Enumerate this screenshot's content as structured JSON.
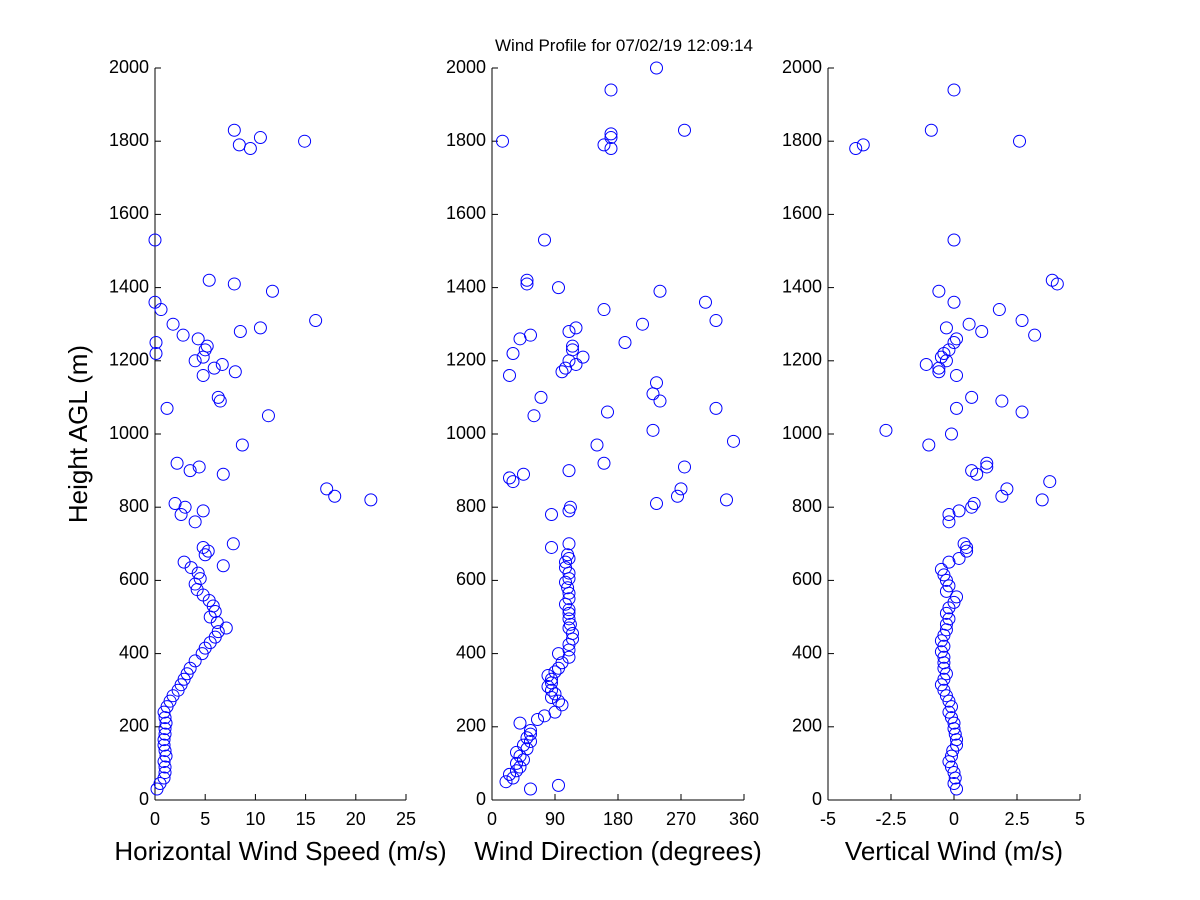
{
  "title": "Wind Profile for  07/02/19 12:09:14",
  "chart_data": [
    {
      "type": "scatter",
      "x_label": "Horizontal Wind Speed (m/s)",
      "y_label": "Height AGL (m)",
      "color": "#0000ff",
      "xlim": [
        0,
        25
      ],
      "ylim": [
        0,
        2000
      ],
      "xticks": [
        0,
        5,
        10,
        15,
        20,
        25
      ],
      "yticks": [
        0,
        200,
        400,
        600,
        800,
        1000,
        1200,
        1400,
        1600,
        1800,
        2000
      ],
      "x": [
        0.2,
        0.5,
        0.9,
        1.0,
        1.0,
        0.9,
        1.1,
        1.0,
        0.9,
        0.9,
        1.0,
        1.0,
        1.1,
        1.0,
        0.9,
        1.2,
        1.5,
        1.8,
        2.3,
        2.6,
        2.9,
        3.2,
        3.5,
        4.0,
        4.7,
        5.0,
        5.5,
        6.0,
        6.3,
        7.1,
        6.2,
        5.5,
        6.0,
        5.8,
        5.4,
        4.8,
        4.2,
        4.0,
        4.5,
        4.3,
        3.6,
        2.9,
        6.8,
        5.0,
        5.3,
        4.8,
        7.8,
        4.0,
        2.6,
        3.0,
        2.0,
        4.8,
        2.2,
        3.5,
        4.4,
        6.8,
        8.7,
        11.3,
        1.2,
        6.3,
        6.5,
        4.8,
        5.9,
        6.7,
        8.0,
        4.0,
        4.8,
        5.0,
        5.2,
        4.3,
        2.8,
        1.8,
        8.5,
        10.5,
        0.1,
        0.1,
        0.0,
        0.6,
        11.7,
        16.0,
        5.4,
        7.9,
        0.0,
        7.9,
        8.4,
        9.5,
        10.5,
        14.9,
        17.1,
        17.9,
        21.5
      ],
      "y": [
        30,
        45,
        60,
        75,
        90,
        105,
        120,
        135,
        150,
        165,
        180,
        195,
        210,
        225,
        240,
        255,
        270,
        285,
        300,
        315,
        330,
        345,
        360,
        380,
        400,
        415,
        430,
        445,
        460,
        470,
        485,
        500,
        515,
        530,
        545,
        560,
        575,
        590,
        605,
        620,
        635,
        650,
        640,
        670,
        680,
        690,
        700,
        760,
        780,
        800,
        810,
        790,
        920,
        900,
        910,
        890,
        970,
        1050,
        1070,
        1100,
        1090,
        1160,
        1180,
        1190,
        1170,
        1200,
        1210,
        1230,
        1240,
        1260,
        1270,
        1300,
        1280,
        1290,
        1250,
        1220,
        1360,
        1340,
        1390,
        1310,
        1420,
        1410,
        1530,
        1830,
        1790,
        1780,
        1810,
        1800,
        850,
        830,
        820
      ]
    },
    {
      "type": "scatter",
      "x_label": "Wind Direction (degrees)",
      "color": "#0000ff",
      "xlim": [
        0,
        360
      ],
      "ylim": [
        0,
        2000
      ],
      "xticks": [
        0,
        90,
        180,
        270,
        360
      ],
      "yticks": [
        0,
        200,
        400,
        600,
        800,
        1000,
        1200,
        1400,
        1600,
        1800,
        2000
      ],
      "x": [
        20,
        30,
        25,
        35,
        40,
        35,
        45,
        40,
        35,
        50,
        45,
        55,
        50,
        55,
        55,
        40,
        65,
        75,
        90,
        100,
        95,
        85,
        90,
        85,
        80,
        85,
        85,
        80,
        90,
        95,
        100,
        110,
        95,
        110,
        110,
        115,
        115,
        110,
        112,
        110,
        110,
        110,
        105,
        110,
        110,
        108,
        105,
        110,
        110,
        105,
        105,
        110,
        108,
        85,
        110,
        55,
        95,
        85,
        110,
        112,
        235,
        265,
        270,
        335,
        30,
        25,
        45,
        110,
        275,
        160,
        150,
        345,
        230,
        60,
        165,
        320,
        240,
        70,
        230,
        235,
        100,
        105,
        120,
        110,
        130,
        30,
        115,
        115,
        25,
        40,
        55,
        110,
        120,
        190,
        215,
        320,
        305,
        160,
        240,
        95,
        50,
        50,
        75,
        15,
        160,
        170,
        170,
        170,
        275,
        170,
        235
      ],
      "y": [
        50,
        60,
        70,
        80,
        90,
        100,
        110,
        120,
        130,
        140,
        150,
        160,
        170,
        180,
        190,
        210,
        220,
        230,
        240,
        260,
        270,
        280,
        290,
        300,
        310,
        320,
        330,
        340,
        350,
        360,
        375,
        390,
        400,
        410,
        425,
        440,
        455,
        470,
        480,
        495,
        510,
        520,
        535,
        550,
        565,
        580,
        595,
        605,
        620,
        635,
        650,
        660,
        670,
        690,
        700,
        30,
        40,
        780,
        790,
        800,
        810,
        830,
        850,
        820,
        870,
        880,
        890,
        900,
        910,
        920,
        970,
        980,
        1010,
        1050,
        1060,
        1070,
        1090,
        1100,
        1110,
        1140,
        1170,
        1180,
        1190,
        1200,
        1210,
        1220,
        1230,
        1240,
        1160,
        1260,
        1270,
        1280,
        1290,
        1250,
        1300,
        1310,
        1360,
        1340,
        1390,
        1400,
        1410,
        1420,
        1530,
        1800,
        1790,
        1810,
        1820,
        1780,
        1830,
        1940,
        2000
      ]
    },
    {
      "type": "scatter",
      "x_label": "Vertical Wind (m/s)",
      "color": "#0000ff",
      "xlim": [
        -5,
        5
      ],
      "ylim": [
        0,
        2000
      ],
      "xticks": [
        -5,
        -2.5,
        0,
        2.5,
        5
      ],
      "yticks": [
        0,
        200,
        400,
        600,
        800,
        1000,
        1200,
        1400,
        1600,
        1800,
        2000
      ],
      "x": [
        0.1,
        0.0,
        0.05,
        0.0,
        -0.1,
        -0.2,
        -0.1,
        -0.05,
        0.1,
        0.1,
        0.05,
        0.0,
        0.0,
        -0.1,
        -0.2,
        -0.1,
        -0.2,
        -0.3,
        -0.4,
        -0.5,
        -0.4,
        -0.3,
        -0.4,
        -0.4,
        -0.4,
        -0.5,
        -0.4,
        -0.5,
        -0.4,
        -0.3,
        -0.3,
        -0.2,
        -0.3,
        -0.2,
        0.0,
        0.1,
        -0.3,
        -0.2,
        -0.3,
        -0.4,
        -0.5,
        -0.2,
        0.2,
        0.5,
        0.5,
        0.4,
        -0.2,
        -0.2,
        0.2,
        0.7,
        0.8,
        1.9,
        2.1,
        3.5,
        3.8,
        0.7,
        0.9,
        1.3,
        1.3,
        -1.0,
        -2.7,
        -0.1,
        0.1,
        2.7,
        1.9,
        0.7,
        -1.1,
        -0.6,
        -0.6,
        0.1,
        -0.5,
        -0.3,
        -0.4,
        -0.2,
        0.0,
        0.1,
        -0.3,
        0.6,
        1.1,
        3.2,
        2.7,
        1.8,
        0.0,
        -0.6,
        3.9,
        4.1,
        0.0,
        -3.9,
        -3.6,
        -0.9,
        2.6,
        0.0
      ],
      "y": [
        30,
        45,
        60,
        75,
        90,
        105,
        120,
        135,
        150,
        165,
        180,
        195,
        210,
        225,
        240,
        255,
        270,
        285,
        300,
        315,
        330,
        345,
        360,
        375,
        390,
        405,
        420,
        435,
        450,
        465,
        480,
        495,
        510,
        525,
        540,
        555,
        570,
        585,
        600,
        615,
        630,
        650,
        660,
        690,
        680,
        700,
        760,
        780,
        790,
        800,
        810,
        830,
        850,
        820,
        870,
        900,
        890,
        920,
        910,
        970,
        1010,
        1000,
        1070,
        1060,
        1090,
        1100,
        1190,
        1180,
        1170,
        1160,
        1210,
        1200,
        1220,
        1230,
        1250,
        1260,
        1290,
        1300,
        1280,
        1270,
        1310,
        1340,
        1360,
        1390,
        1420,
        1410,
        1530,
        1780,
        1790,
        1830,
        1800,
        1940
      ]
    }
  ]
}
